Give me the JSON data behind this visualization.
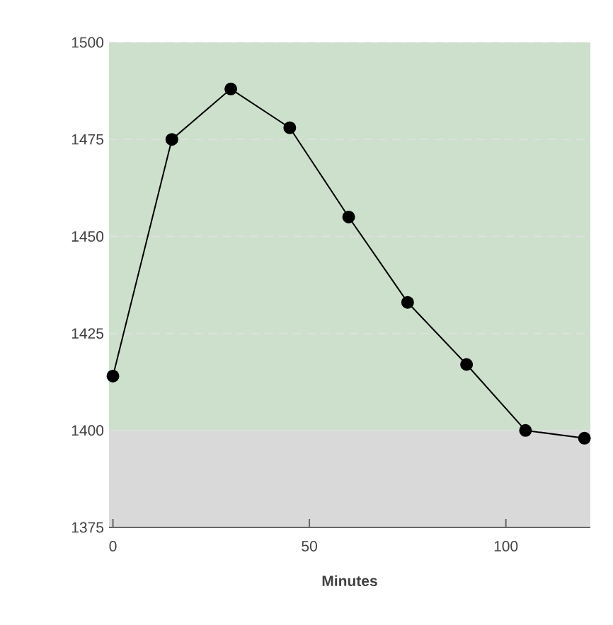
{
  "chart_data": {
    "type": "line",
    "xlabel": "Minutes",
    "x": [
      0,
      15,
      30,
      45,
      60,
      75,
      90,
      105,
      120
    ],
    "series": [
      {
        "color": "#000000",
        "values": [
          1414,
          1475,
          1488,
          1478,
          1455,
          1433,
          1417,
          1400,
          1398
        ]
      }
    ],
    "xlim": [
      -1,
      121.5
    ],
    "ylim": [
      1375,
      1500
    ],
    "xticks": [
      0,
      50,
      100
    ],
    "yticks": [
      1375,
      1400,
      1425,
      1450,
      1475,
      1500
    ],
    "bands": [
      {
        "axis": "y",
        "from": 1400,
        "to": 1500,
        "color": "#cce0cc"
      },
      {
        "axis": "y",
        "from": 1375,
        "to": 1400,
        "color": "#d9d9d9"
      }
    ],
    "grid": "y",
    "marker": "circle",
    "line_style": "solid"
  }
}
